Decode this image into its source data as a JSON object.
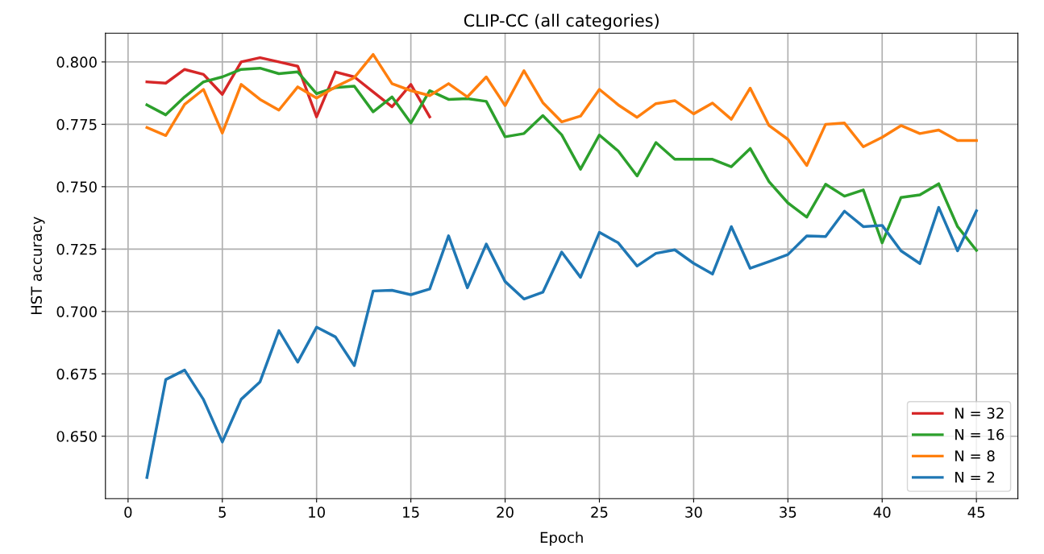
{
  "chart_data": {
    "type": "line",
    "title": "CLIP-CC (all categories)",
    "xlabel": "Epoch",
    "ylabel": "HST accuracy",
    "x": [
      1,
      2,
      3,
      4,
      5,
      6,
      7,
      8,
      9,
      10,
      11,
      12,
      13,
      14,
      15,
      16,
      17,
      18,
      19,
      20,
      21,
      22,
      23,
      24,
      25,
      26,
      27,
      28,
      29,
      30,
      31,
      32,
      33,
      34,
      35,
      36,
      37,
      38,
      39,
      40,
      41,
      42,
      43,
      44,
      45
    ],
    "series": [
      {
        "name": "N = 32",
        "color": "#d62728",
        "x": [
          1,
          2,
          3,
          4,
          5,
          6,
          7,
          8,
          9,
          10,
          11,
          12,
          13,
          14,
          15,
          16
        ],
        "values": [
          0.792,
          0.7915,
          0.797,
          0.795,
          0.787,
          0.8,
          0.8017,
          0.8,
          0.7983,
          0.778,
          0.796,
          0.794,
          0.788,
          0.782,
          0.791,
          0.778
        ]
      },
      {
        "name": "N = 16",
        "color": "#2ca02c",
        "values": [
          0.7828,
          0.7788,
          0.786,
          0.792,
          0.794,
          0.797,
          0.7975,
          0.7953,
          0.796,
          0.7873,
          0.7897,
          0.7903,
          0.78,
          0.786,
          0.7755,
          0.7885,
          0.785,
          0.7853,
          0.7842,
          0.77,
          0.7713,
          0.7785,
          0.7708,
          0.757,
          0.7707,
          0.7643,
          0.7543,
          0.7677,
          0.761,
          0.761,
          0.761,
          0.758,
          0.7653,
          0.752,
          0.7435,
          0.7378,
          0.751,
          0.7462,
          0.7487,
          0.7275,
          0.7457,
          0.7467,
          0.7512,
          0.734,
          0.7245
        ]
      },
      {
        "name": "N = 8",
        "color": "#ff7f0e",
        "values": [
          0.7737,
          0.7705,
          0.783,
          0.789,
          0.7715,
          0.791,
          0.785,
          0.7807,
          0.79,
          0.7855,
          0.79,
          0.7937,
          0.803,
          0.7913,
          0.7885,
          0.7865,
          0.7913,
          0.786,
          0.794,
          0.7825,
          0.7965,
          0.7837,
          0.776,
          0.7783,
          0.789,
          0.7828,
          0.7778,
          0.7833,
          0.7845,
          0.7792,
          0.7835,
          0.777,
          0.7895,
          0.7745,
          0.769,
          0.7585,
          0.775,
          0.7755,
          0.766,
          0.7698,
          0.7745,
          0.7713,
          0.7727,
          0.7685,
          0.7685
        ]
      },
      {
        "name": "N = 2",
        "color": "#1f77b4",
        "values": [
          0.6335,
          0.6727,
          0.6765,
          0.6647,
          0.6477,
          0.6648,
          0.6718,
          0.6923,
          0.6797,
          0.6937,
          0.6898,
          0.6783,
          0.7082,
          0.7085,
          0.7067,
          0.709,
          0.7303,
          0.7095,
          0.727,
          0.712,
          0.705,
          0.7077,
          0.7238,
          0.7137,
          0.7317,
          0.7275,
          0.7182,
          0.7233,
          0.7247,
          0.7193,
          0.715,
          0.734,
          0.7173,
          0.72,
          0.7228,
          0.7303,
          0.73,
          0.7402,
          0.734,
          0.7345,
          0.7243,
          0.7192,
          0.7417,
          0.7243,
          0.7403
        ]
      }
    ],
    "xlim": [
      -1.2,
      47.2
    ],
    "xticks": [
      0,
      5,
      10,
      15,
      20,
      25,
      30,
      35,
      40,
      45
    ],
    "ylim": [
      0.625,
      0.8115
    ],
    "yticks": [
      {
        "value": 0.65,
        "label": "0.650"
      },
      {
        "value": 0.675,
        "label": "0.675"
      },
      {
        "value": 0.7,
        "label": "0.700"
      },
      {
        "value": 0.725,
        "label": "0.725"
      },
      {
        "value": 0.75,
        "label": "0.750"
      },
      {
        "value": 0.775,
        "label": "0.775"
      },
      {
        "value": 0.8,
        "label": "0.800"
      }
    ],
    "grid": true,
    "legend": "lower right",
    "marker": "none",
    "line_style": "solid"
  }
}
